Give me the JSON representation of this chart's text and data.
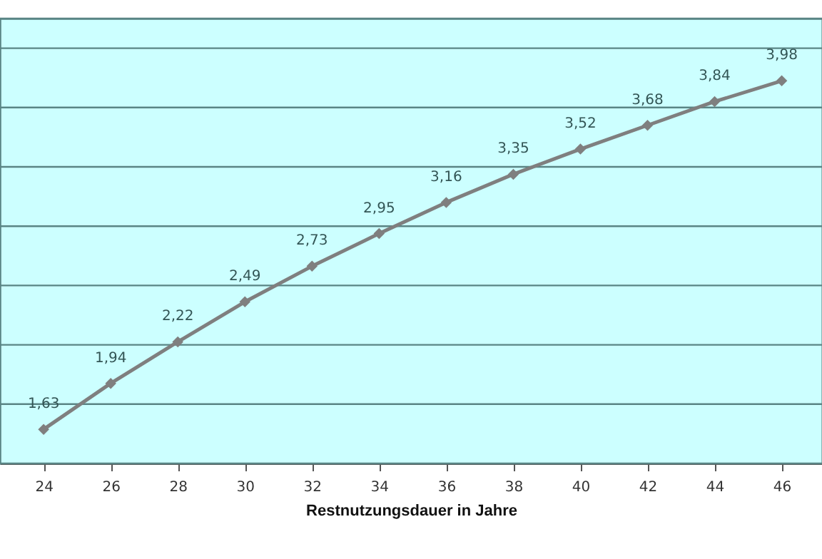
{
  "chart_data": {
    "type": "line",
    "xlabel": "Restnutzungsdauer  in Jahre",
    "x": [
      24,
      26,
      28,
      30,
      32,
      34,
      36,
      38,
      40,
      42,
      44,
      46
    ],
    "series": [
      {
        "color": "#7f7f7f",
        "values": [
          1.63,
          1.94,
          2.22,
          2.49,
          2.73,
          2.95,
          3.16,
          3.35,
          3.52,
          3.68,
          3.84,
          3.98
        ],
        "value_labels": [
          "1,63",
          "1,94",
          "2,22",
          "2,49",
          "2,73",
          "2,95",
          "3,16",
          "3,35",
          "3,52",
          "3,68",
          "3,84",
          "3,98"
        ]
      }
    ],
    "xlim": [
      22.7,
      47.2
    ],
    "xticks": [
      24,
      26,
      28,
      30,
      32,
      34,
      36,
      38,
      40,
      42,
      44,
      46
    ],
    "ylim": [
      1.4,
      4.4
    ],
    "yticks": [
      {
        "value": 1.4,
        "label": null
      },
      {
        "value": 1.8,
        "label": null
      },
      {
        "value": 2.2,
        "label": null
      },
      {
        "value": 2.6,
        "label": null
      },
      {
        "value": 3.0,
        "label": null
      },
      {
        "value": 3.4,
        "label": null
      },
      {
        "value": 3.8,
        "label": null
      },
      {
        "value": 4.2,
        "label": null
      },
      {
        "value": 4.4,
        "label": null
      }
    ],
    "grid": "y",
    "tick_labels": "x",
    "marker": "diamond",
    "line_style": "solid"
  }
}
